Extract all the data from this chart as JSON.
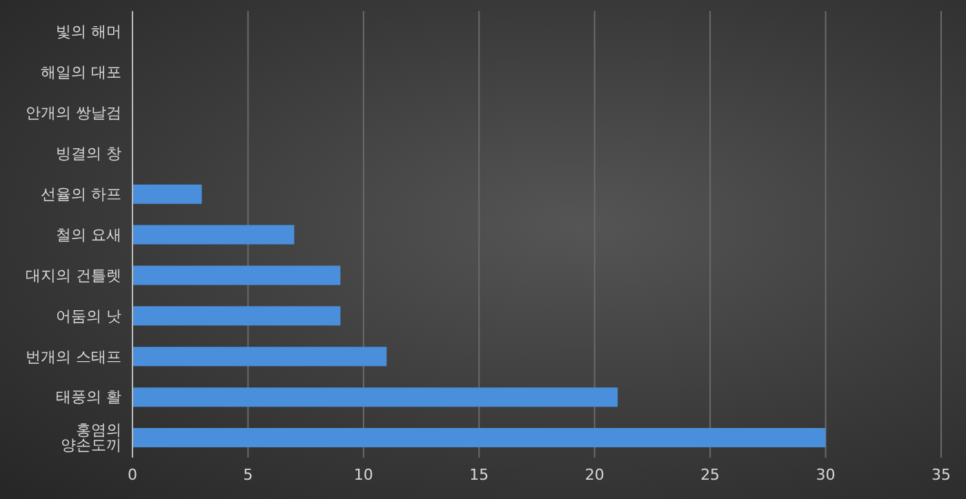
{
  "chart_data": {
    "type": "bar",
    "orientation": "horizontal",
    "categories": [
      "빛의 해머",
      "해일의 대포",
      "안개의 쌍날검",
      "빙결의 창",
      "선율의 하프",
      "철의 요새",
      "대지의 건틀렛",
      "어둠의 낫",
      "번개의 스태프",
      "태풍의 활",
      "홍염의 양손도끼"
    ],
    "values": [
      0,
      0,
      0,
      0,
      3,
      7,
      9,
      9,
      11,
      21,
      30
    ],
    "color": "#4a8fdb",
    "xlim": [
      0,
      35
    ],
    "xticks": [
      0,
      5,
      10,
      15,
      20,
      25,
      30,
      35
    ],
    "grid": "x"
  }
}
